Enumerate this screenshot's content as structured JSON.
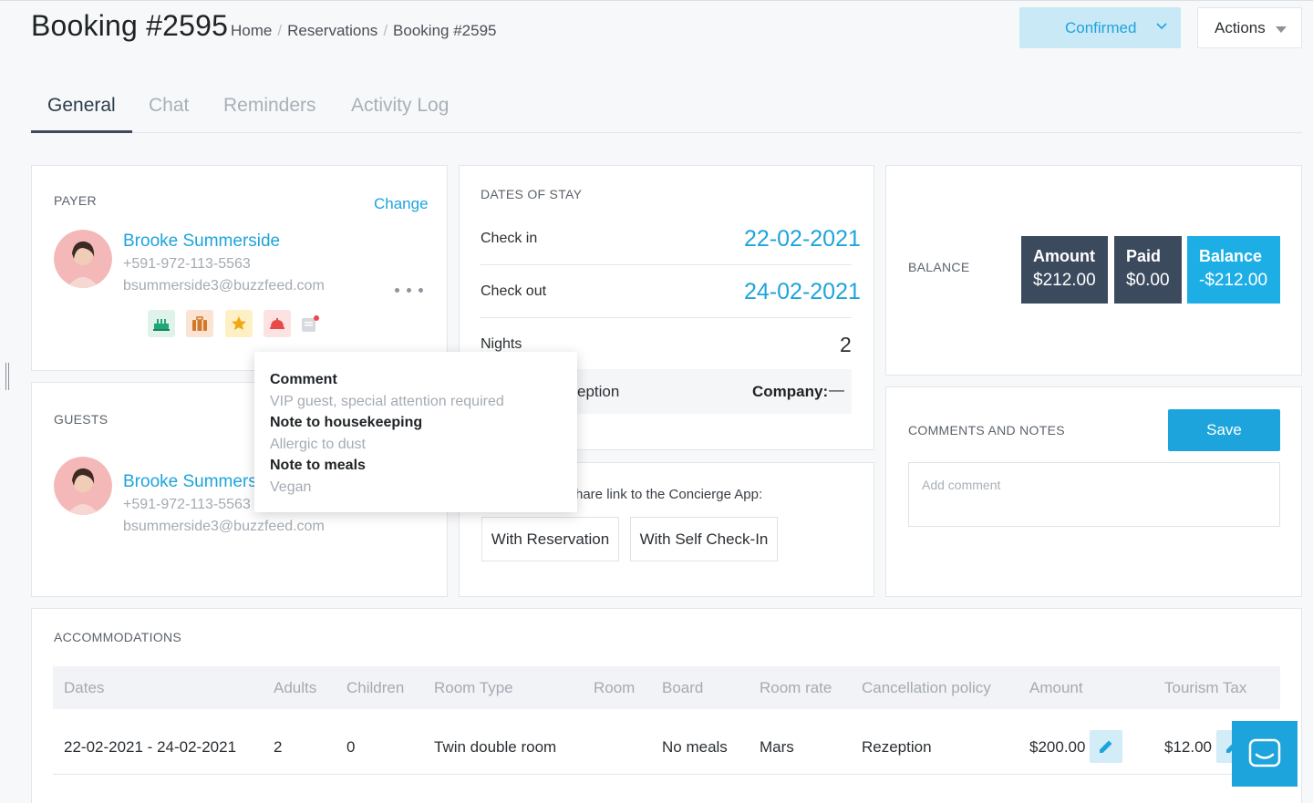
{
  "header": {
    "title": "Booking #2595",
    "breadcrumb": [
      "Home",
      "Reservations",
      "Booking #2595"
    ],
    "status": "Confirmed",
    "actions": "Actions"
  },
  "tabs": [
    "General",
    "Chat",
    "Reminders",
    "Activity Log"
  ],
  "payer": {
    "label": "PAYER",
    "change": "Change",
    "name": "Brooke Summerside",
    "phone": "+591-972-113-5563",
    "email": "bsummerside3@buzzfeed.com",
    "icons": [
      "cake-icon",
      "suitcase-icon",
      "star-icon",
      "room-service-icon",
      "note-icon"
    ]
  },
  "guests": {
    "label": "GUESTS",
    "name": "Brooke Summers",
    "phone": "+591-972-113-5563",
    "email": "bsummerside3@buzzfeed.com"
  },
  "dates": {
    "label": "DATES OF STAY",
    "checkin_label": "Check in",
    "checkin": "22-02-2021",
    "checkout_label": "Check out",
    "checkout": "24-02-2021",
    "nights_label": "Nights",
    "nights": "2",
    "source_partial": "eption",
    "company_label": "Company:",
    "company_value": "—"
  },
  "share": {
    "text": "hare link to the Concierge App:",
    "with_reservation": "With Reservation",
    "with_self_checkin": "With Self Check-In"
  },
  "balance": {
    "label": "BALANCE",
    "amount_label": "Amount",
    "amount": "$212.00",
    "paid_label": "Paid",
    "paid": "$0.00",
    "balance_label": "Balance",
    "balance": "-$212.00",
    "colors": {
      "dark": "#3c4a5e",
      "accent": "#1eaee6"
    }
  },
  "comments": {
    "label": "COMMENTS AND NOTES",
    "save": "Save",
    "placeholder": "Add comment"
  },
  "popover": {
    "comment_h": "Comment",
    "comment_v": "VIP guest, special attention required",
    "housekeeping_h": "Note to housekeeping",
    "housekeeping_v": "Allergic to dust",
    "meals_h": "Note to meals",
    "meals_v": "Vegan"
  },
  "accommodations": {
    "label": "ACCOMMODATIONS",
    "columns": [
      "Dates",
      "Adults",
      "Children",
      "Room Type",
      "Room",
      "Board",
      "Room rate",
      "Cancellation policy",
      "Amount",
      "Tourism Tax"
    ],
    "rows": [
      [
        "22-02-2021 - 24-02-2021",
        "2",
        "0",
        "Twin double room",
        "",
        "No meals",
        "Mars",
        "Rezeption",
        "$200.00",
        "$12.00"
      ]
    ]
  }
}
